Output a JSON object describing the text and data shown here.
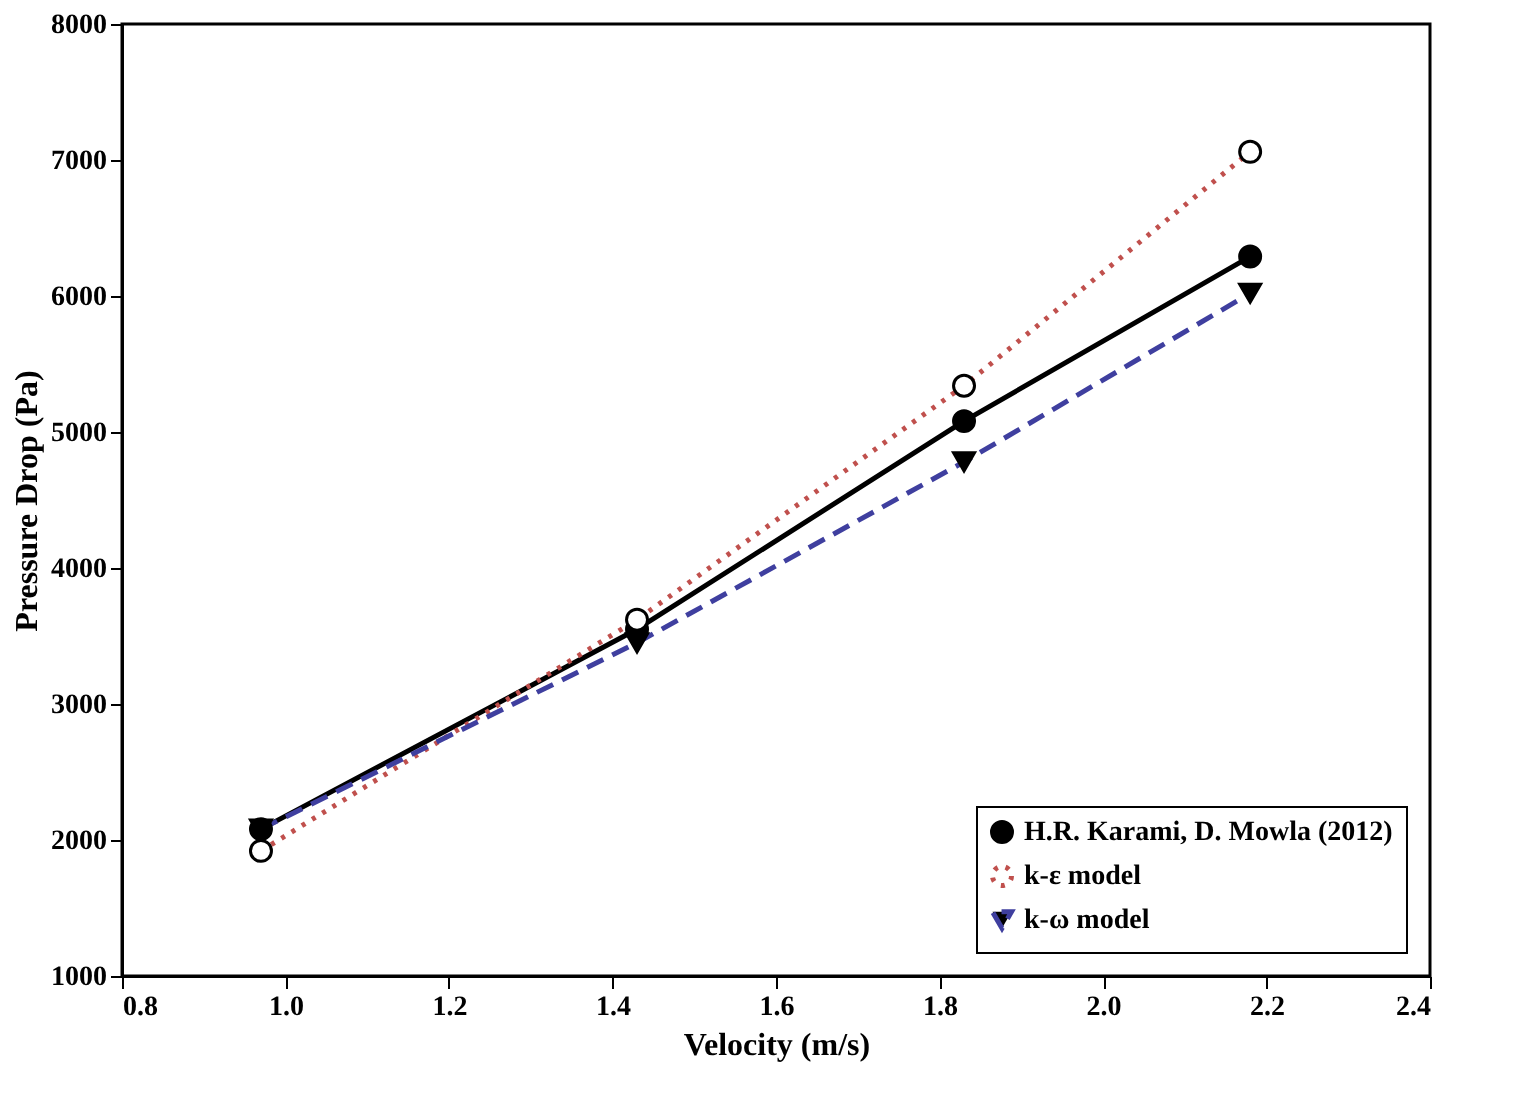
{
  "chart_data": {
    "type": "line",
    "xlabel": "Velocity (m/s)",
    "ylabel": "Pressure Drop (Pa)",
    "x": [
      0.97,
      1.43,
      1.83,
      2.18
    ],
    "series": [
      {
        "name": "H.R. Karami, D. Mowla (2012)",
        "color": "#000000",
        "values": [
          2080,
          3550,
          5080,
          6290
        ],
        "marker": "circle",
        "line_style": "solid"
      },
      {
        "name": "k-ε   model",
        "color": "#c0504d",
        "values": [
          1920,
          3620,
          5340,
          7060
        ],
        "marker": "circle",
        "line_style": "dotted"
      },
      {
        "name": "k-ω model",
        "color": "#3f3f9f",
        "values": [
          2080,
          3450,
          4780,
          6020
        ],
        "marker": "triangle",
        "line_style": "dashed"
      }
    ],
    "xlim": [
      0.8,
      2.4
    ],
    "xticks": [
      0.8,
      {
        "value": 1,
        "label": "1.0"
      },
      1.2,
      1.4,
      1.6,
      1.8,
      {
        "value": 2,
        "label": "2.0"
      },
      2.2,
      2.4
    ],
    "ylim": [
      1000,
      8000
    ],
    "yticks": [
      1000,
      2000,
      3000,
      4000,
      5000,
      6000,
      7000,
      8000
    ],
    "grid": false,
    "legend": "bottom right"
  }
}
